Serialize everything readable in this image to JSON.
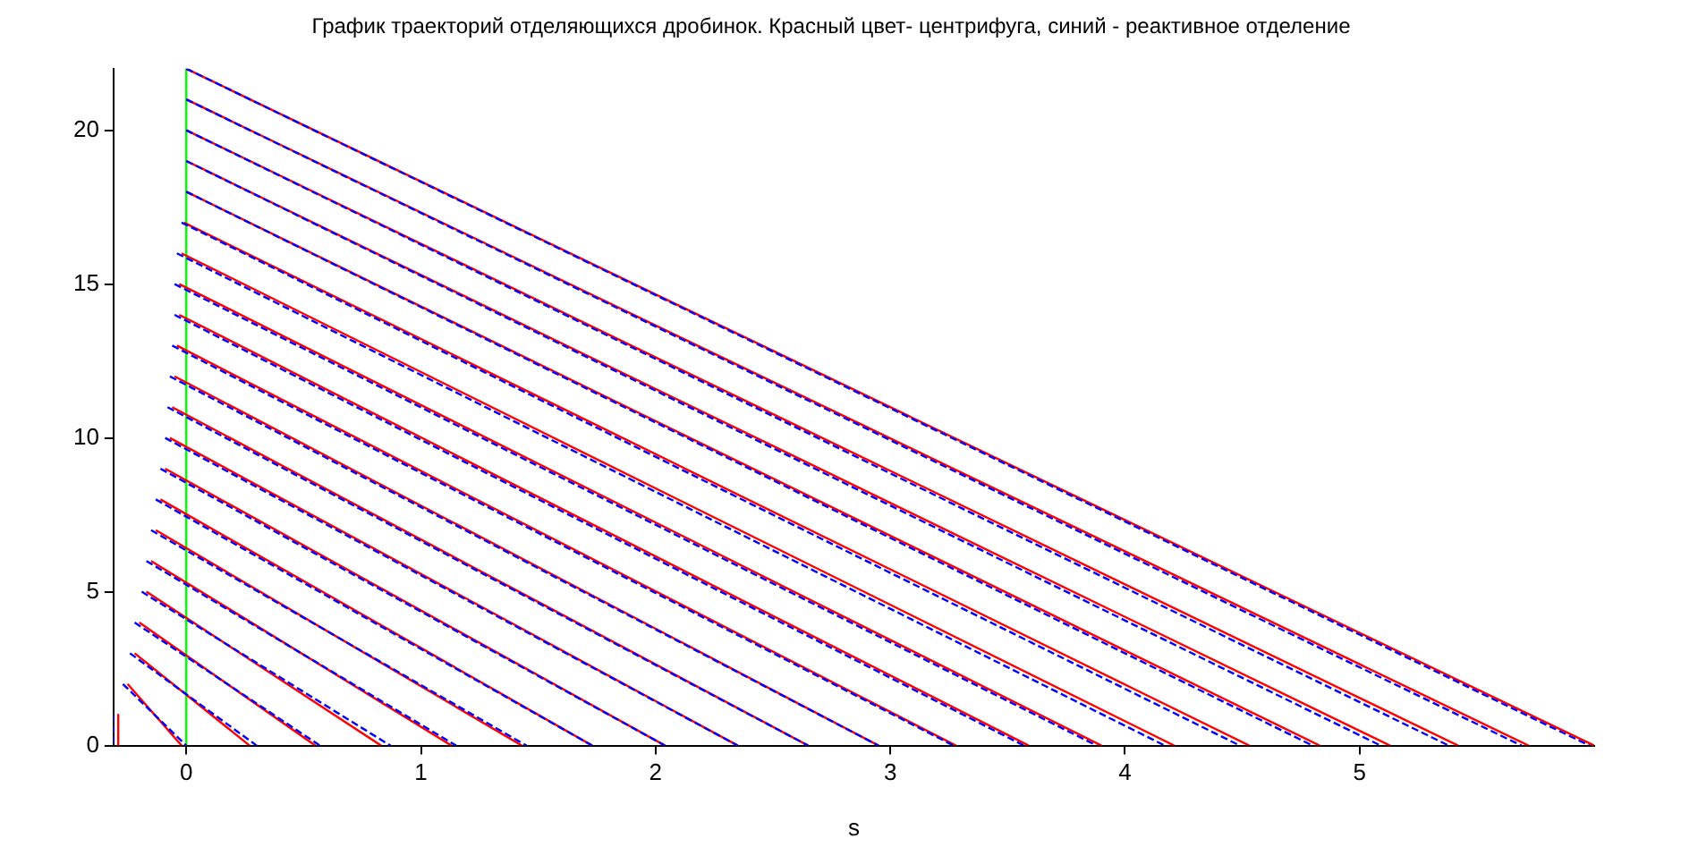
{
  "chart_data": {
    "type": "line",
    "title": "График траекторий отделяющихся дробинок. Красный цвет- центрифуга, синий - реактивное отделение",
    "xlabel": "s",
    "marker": "none",
    "xlim": [
      -0.31,
      6
    ],
    "ylim": [
      0,
      22
    ],
    "xticks": [
      0,
      1,
      2,
      3,
      4,
      5
    ],
    "yticks": [
      0,
      5,
      10,
      15,
      20
    ],
    "series": [
      {
        "color": "#00ff00",
        "x": [
          0,
          0
        ],
        "values": [
          0,
          22
        ]
      },
      {
        "color": "#ff0000",
        "x": [
          -0.29,
          -0.29
        ],
        "values": [
          1,
          0
        ]
      },
      {
        "color": "#ff0000",
        "x": [
          -0.25,
          -0.02
        ],
        "values": [
          2,
          0
        ]
      },
      {
        "color": "#ff0000",
        "x": [
          -0.22,
          0.27
        ],
        "values": [
          3,
          0
        ]
      },
      {
        "color": "#ff0000",
        "x": [
          -0.2,
          0.55
        ],
        "values": [
          4,
          0
        ]
      },
      {
        "color": "#ff0000",
        "x": [
          -0.17,
          0.83
        ],
        "values": [
          5,
          0
        ]
      },
      {
        "color": "#ff0000",
        "x": [
          -0.15,
          1.13
        ],
        "values": [
          6,
          0
        ]
      },
      {
        "color": "#ff0000",
        "x": [
          -0.13,
          1.43
        ],
        "values": [
          7,
          0
        ]
      },
      {
        "color": "#ff0000",
        "x": [
          -0.11,
          1.73
        ],
        "values": [
          8,
          0
        ]
      },
      {
        "color": "#ff0000",
        "x": [
          -0.09,
          2.04
        ],
        "values": [
          9,
          0
        ]
      },
      {
        "color": "#ff0000",
        "x": [
          -0.07,
          2.35
        ],
        "values": [
          10,
          0
        ]
      },
      {
        "color": "#ff0000",
        "x": [
          -0.06,
          2.65
        ],
        "values": [
          11,
          0
        ]
      },
      {
        "color": "#ff0000",
        "x": [
          -0.05,
          2.95
        ],
        "values": [
          12,
          0
        ]
      },
      {
        "color": "#ff0000",
        "x": [
          -0.04,
          3.28
        ],
        "values": [
          13,
          0
        ]
      },
      {
        "color": "#ff0000",
        "x": [
          -0.03,
          3.59
        ],
        "values": [
          14,
          0
        ]
      },
      {
        "color": "#ff0000",
        "x": [
          -0.03,
          3.9
        ],
        "values": [
          15,
          0
        ]
      },
      {
        "color": "#ff0000",
        "x": [
          -0.02,
          4.21
        ],
        "values": [
          16,
          0
        ]
      },
      {
        "color": "#ff0000",
        "x": [
          -0.01,
          4.53
        ],
        "values": [
          17,
          0
        ]
      },
      {
        "color": "#ff0000",
        "x": [
          0,
          4.83
        ],
        "values": [
          18,
          0
        ]
      },
      {
        "color": "#ff0000",
        "x": [
          0,
          5.13
        ],
        "values": [
          19,
          0
        ]
      },
      {
        "color": "#ff0000",
        "x": [
          0,
          5.42
        ],
        "values": [
          20,
          0
        ]
      },
      {
        "color": "#ff0000",
        "x": [
          0,
          5.72
        ],
        "values": [
          21,
          0
        ]
      },
      {
        "color": "#ff0000",
        "x": [
          0,
          6
        ],
        "values": [
          22,
          0
        ]
      },
      {
        "color": "#0000ff",
        "line_style": "dashed",
        "x": [
          -0.31,
          -0.31
        ],
        "values": [
          1,
          0
        ]
      },
      {
        "color": "#0000ff",
        "line_style": "dashed",
        "x": [
          -0.27,
          0
        ],
        "values": [
          2,
          0
        ]
      },
      {
        "color": "#0000ff",
        "line_style": "dashed",
        "x": [
          -0.24,
          0.3
        ],
        "values": [
          3,
          0
        ]
      },
      {
        "color": "#0000ff",
        "line_style": "dashed",
        "x": [
          -0.22,
          0.57
        ],
        "values": [
          4,
          0
        ]
      },
      {
        "color": "#0000ff",
        "line_style": "dashed",
        "x": [
          -0.19,
          0.87
        ],
        "values": [
          5,
          0
        ]
      },
      {
        "color": "#0000ff",
        "line_style": "dashed",
        "x": [
          -0.17,
          1.15
        ],
        "values": [
          6,
          0
        ]
      },
      {
        "color": "#0000ff",
        "line_style": "dashed",
        "x": [
          -0.15,
          1.45
        ],
        "values": [
          7,
          0
        ]
      },
      {
        "color": "#0000ff",
        "line_style": "dashed",
        "x": [
          -0.13,
          1.73
        ],
        "values": [
          8,
          0
        ]
      },
      {
        "color": "#0000ff",
        "line_style": "dashed",
        "x": [
          -0.11,
          2.04
        ],
        "values": [
          9,
          0
        ]
      },
      {
        "color": "#0000ff",
        "line_style": "dashed",
        "x": [
          -0.09,
          2.35
        ],
        "values": [
          10,
          0
        ]
      },
      {
        "color": "#0000ff",
        "line_style": "dashed",
        "x": [
          -0.08,
          2.65
        ],
        "values": [
          11,
          0
        ]
      },
      {
        "color": "#0000ff",
        "line_style": "dashed",
        "x": [
          -0.07,
          2.95
        ],
        "values": [
          12,
          0
        ]
      },
      {
        "color": "#0000ff",
        "line_style": "dashed",
        "x": [
          -0.06,
          3.27
        ],
        "values": [
          13,
          0
        ]
      },
      {
        "color": "#0000ff",
        "line_style": "dashed",
        "x": [
          -0.05,
          3.57
        ],
        "values": [
          14,
          0
        ]
      },
      {
        "color": "#0000ff",
        "line_style": "dashed",
        "x": [
          -0.05,
          3.88
        ],
        "values": [
          15,
          0
        ]
      },
      {
        "color": "#0000ff",
        "line_style": "dashed",
        "x": [
          -0.04,
          4.17
        ],
        "values": [
          16,
          0
        ]
      },
      {
        "color": "#0000ff",
        "line_style": "dashed",
        "x": [
          -0.02,
          4.49
        ],
        "values": [
          17,
          0
        ]
      },
      {
        "color": "#0000ff",
        "line_style": "dashed",
        "x": [
          0,
          4.8
        ],
        "values": [
          18,
          0
        ]
      },
      {
        "color": "#0000ff",
        "line_style": "dashed",
        "x": [
          0,
          5.09
        ],
        "values": [
          19,
          0
        ]
      },
      {
        "color": "#0000ff",
        "line_style": "dashed",
        "x": [
          0,
          5.38
        ],
        "values": [
          20,
          0
        ]
      },
      {
        "color": "#0000ff",
        "line_style": "dashed",
        "x": [
          0,
          5.69
        ],
        "values": [
          21,
          0
        ]
      },
      {
        "color": "#0000ff",
        "line_style": "dashed",
        "x": [
          0,
          5.98
        ],
        "values": [
          22,
          0
        ]
      }
    ]
  }
}
